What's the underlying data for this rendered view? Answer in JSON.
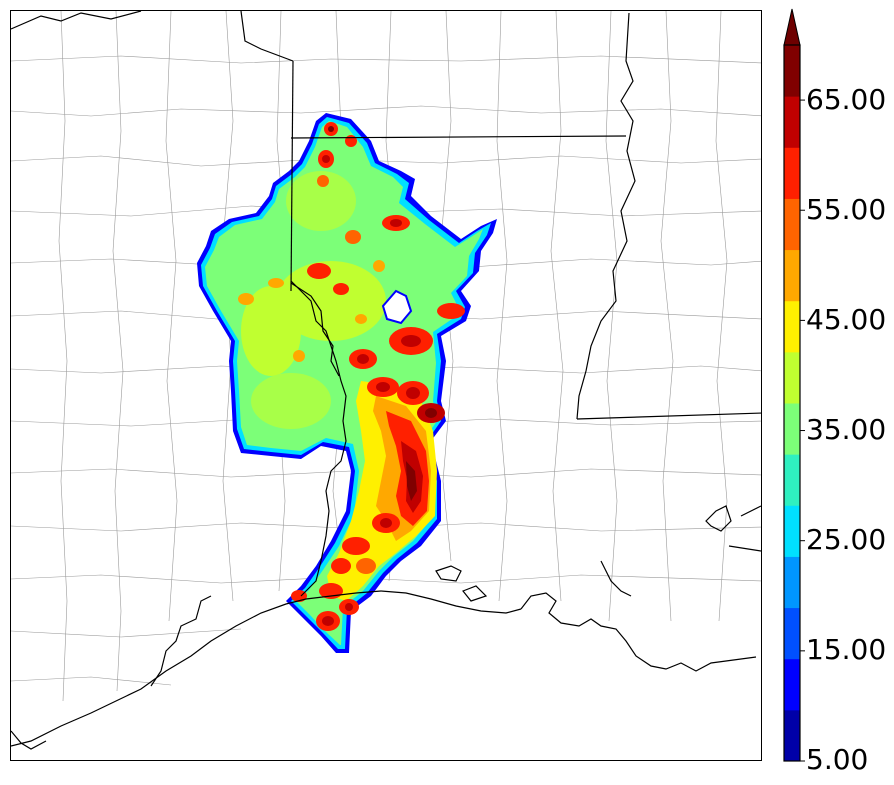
{
  "colorbar": {
    "colors": [
      "#0000a8",
      "#0000ff",
      "#0050ff",
      "#0096ff",
      "#00e0ff",
      "#2ff0c0",
      "#7cff78",
      "#c0ff30",
      "#fff000",
      "#ffa800",
      "#ff6400",
      "#ff2000",
      "#c00000",
      "#800000"
    ],
    "extend_color": "#6e0000",
    "tick_labels": [
      "5.00",
      "15.00",
      "25.00",
      "35.00",
      "45.00",
      "55.00",
      "65.00"
    ],
    "vmin": 5,
    "vmax": 70,
    "extend": "max"
  },
  "map": {
    "background_color": "#ffffff",
    "boundary_color": "#000000",
    "county_color": "#9a9a9a"
  }
}
